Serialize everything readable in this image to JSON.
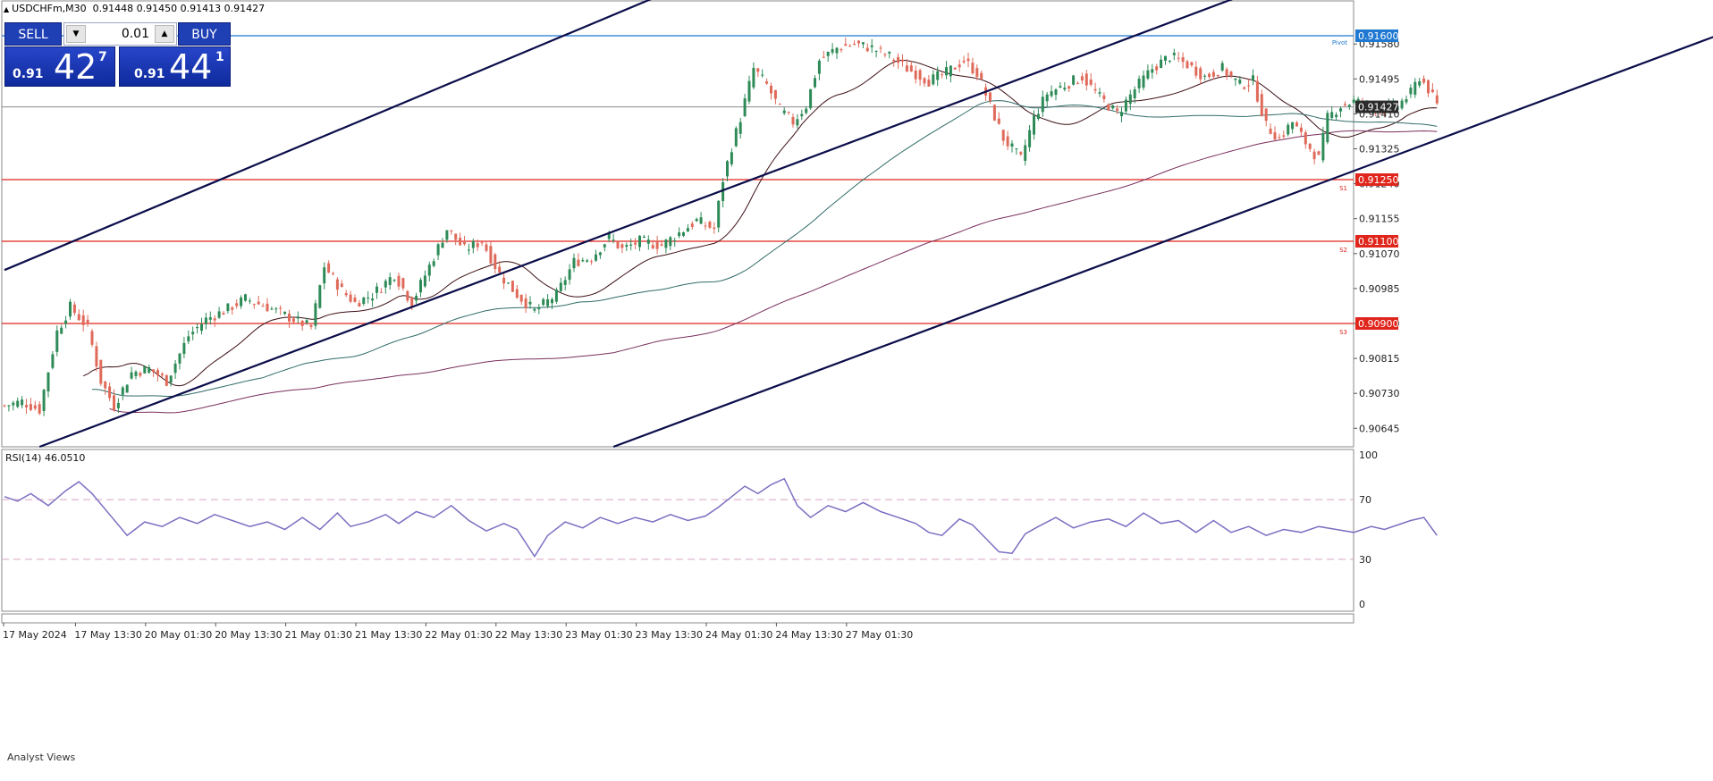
{
  "header": {
    "symbol": "USDCHFm,M30",
    "ohlc": "0.91448 0.91450 0.91413 0.91427"
  },
  "trade_panel": {
    "sell_label": "SELL",
    "buy_label": "BUY",
    "lot": "0.01",
    "bid": {
      "prefix": "0.91",
      "big": "42",
      "sup": "7"
    },
    "ask": {
      "prefix": "0.91",
      "big": "44",
      "sup": "1"
    }
  },
  "analyst_views_label": "Analyst Views",
  "colors": {
    "bull": "#2e8b57",
    "bear": "#e06a5a",
    "channel": "#0b0d4a",
    "level": "#e0261c",
    "pivot": "#1f78d1",
    "ma_fast": "#3d0f14",
    "ma_mid": "#2f6b68",
    "ma_slow": "#7a2f5e",
    "rsi": "#7b6fc2"
  },
  "chart_data": [
    {
      "type": "candlestick",
      "title": "",
      "ylim": [
        0.906,
        0.9165
      ],
      "yticks": [
        "0.91580",
        "0.91495",
        "0.91410",
        "0.91325",
        "0.91240",
        "0.91155",
        "0.91070",
        "0.90985",
        "0.90900",
        "0.90815",
        "0.90730",
        "0.90645"
      ],
      "xtick_labels": [
        "17 May 2024",
        "17 May 13:30",
        "20 May 01:30",
        "20 May 13:30",
        "21 May 01:30",
        "21 May 13:30",
        "22 May 01:30",
        "22 May 13:30",
        "23 May 01:30",
        "23 May 13:30",
        "24 May 01:30",
        "24 May 13:30",
        "27 May 01:30"
      ],
      "current_price": {
        "value": 0.91427,
        "label": "0.91427"
      },
      "levels": [
        {
          "name": "Pivot",
          "value": 0.916,
          "label": "0.91600"
        },
        {
          "name": "S1",
          "value": 0.9125,
          "label": "0.91250"
        },
        {
          "name": "S2",
          "value": 0.911,
          "label": "0.91100"
        },
        {
          "name": "S3",
          "value": 0.909,
          "label": "0.90900"
        }
      ],
      "channel_lines": [
        {
          "from": [
            0,
            0.9103
          ],
          "to": [
            150,
            0.917
          ]
        },
        {
          "from": [
            8,
            0.906
          ],
          "to": [
            283,
            0.917
          ]
        },
        {
          "from": [
            139,
            0.906
          ],
          "to": [
            416,
            0.917
          ]
        }
      ],
      "close_points": [
        [
          0,
          0.907
        ],
        [
          4,
          0.9071
        ],
        [
          8,
          0.9069
        ],
        [
          12,
          0.9088
        ],
        [
          15,
          0.9094
        ],
        [
          19,
          0.9089
        ],
        [
          22,
          0.9076
        ],
        [
          25,
          0.907
        ],
        [
          29,
          0.9078
        ],
        [
          33,
          0.9079
        ],
        [
          37,
          0.9076
        ],
        [
          42,
          0.9087
        ],
        [
          46,
          0.9091
        ],
        [
          50,
          0.9093
        ],
        [
          55,
          0.9096
        ],
        [
          60,
          0.9094
        ],
        [
          66,
          0.9091
        ],
        [
          70,
          0.9089
        ],
        [
          73,
          0.9104
        ],
        [
          77,
          0.9098
        ],
        [
          80,
          0.9095
        ],
        [
          84,
          0.9097
        ],
        [
          89,
          0.9102
        ],
        [
          93,
          0.9095
        ],
        [
          97,
          0.9104
        ],
        [
          101,
          0.9113
        ],
        [
          105,
          0.9108
        ],
        [
          109,
          0.911
        ],
        [
          113,
          0.9102
        ],
        [
          117,
          0.9097
        ],
        [
          121,
          0.9093
        ],
        [
          126,
          0.9097
        ],
        [
          130,
          0.9105
        ],
        [
          134,
          0.9106
        ],
        [
          138,
          0.9111
        ],
        [
          141,
          0.9108
        ],
        [
          145,
          0.911
        ],
        [
          150,
          0.9109
        ],
        [
          154,
          0.9112
        ],
        [
          158,
          0.9115
        ],
        [
          162,
          0.9113
        ],
        [
          164,
          0.9125
        ],
        [
          166,
          0.9133
        ],
        [
          168,
          0.914
        ],
        [
          171,
          0.9152
        ],
        [
          174,
          0.9148
        ],
        [
          177,
          0.9142
        ],
        [
          180,
          0.9139
        ],
        [
          183,
          0.9143
        ],
        [
          186,
          0.9154
        ],
        [
          190,
          0.9157
        ],
        [
          194,
          0.9158
        ],
        [
          198,
          0.9157
        ],
        [
          202,
          0.9155
        ],
        [
          206,
          0.9152
        ],
        [
          211,
          0.9149
        ],
        [
          215,
          0.9151
        ],
        [
          219,
          0.9154
        ],
        [
          222,
          0.9151
        ],
        [
          225,
          0.9143
        ],
        [
          228,
          0.9135
        ],
        [
          232,
          0.913
        ],
        [
          235,
          0.914
        ],
        [
          238,
          0.9146
        ],
        [
          242,
          0.9148
        ],
        [
          246,
          0.915
        ],
        [
          250,
          0.9145
        ],
        [
          254,
          0.9141
        ],
        [
          258,
          0.9147
        ],
        [
          262,
          0.9152
        ],
        [
          266,
          0.9155
        ],
        [
          270,
          0.9153
        ],
        [
          274,
          0.915
        ],
        [
          278,
          0.9152
        ],
        [
          282,
          0.9148
        ],
        [
          285,
          0.9149
        ],
        [
          288,
          0.9138
        ],
        [
          291,
          0.9135
        ],
        [
          294,
          0.9139
        ],
        [
          297,
          0.9134
        ],
        [
          300,
          0.913
        ],
        [
          302,
          0.914
        ],
        [
          305,
          0.9143
        ],
        [
          308,
          0.9144
        ],
        [
          312,
          0.9143
        ],
        [
          315,
          0.9142
        ],
        [
          318,
          0.9143
        ],
        [
          321,
          0.9146
        ],
        [
          323,
          0.915
        ],
        [
          325,
          0.9147
        ],
        [
          327,
          0.9143
        ]
      ]
    },
    {
      "type": "line",
      "title": "RSI(14) 46.0510",
      "ylim": [
        0,
        100
      ],
      "yticks": [
        "100",
        "70",
        "30",
        "0"
      ],
      "levels": [
        70,
        30
      ],
      "values": [
        [
          0,
          72
        ],
        [
          3,
          69
        ],
        [
          6,
          74
        ],
        [
          10,
          66
        ],
        [
          14,
          76
        ],
        [
          17,
          82
        ],
        [
          20,
          74
        ],
        [
          24,
          60
        ],
        [
          28,
          46
        ],
        [
          32,
          55
        ],
        [
          36,
          52
        ],
        [
          40,
          58
        ],
        [
          44,
          54
        ],
        [
          48,
          60
        ],
        [
          52,
          56
        ],
        [
          56,
          52
        ],
        [
          60,
          55
        ],
        [
          64,
          50
        ],
        [
          68,
          58
        ],
        [
          72,
          50
        ],
        [
          76,
          61
        ],
        [
          79,
          52
        ],
        [
          83,
          55
        ],
        [
          87,
          60
        ],
        [
          90,
          54
        ],
        [
          94,
          62
        ],
        [
          98,
          58
        ],
        [
          102,
          66
        ],
        [
          106,
          56
        ],
        [
          110,
          49
        ],
        [
          114,
          54
        ],
        [
          117,
          50
        ],
        [
          121,
          32
        ],
        [
          124,
          46
        ],
        [
          128,
          55
        ],
        [
          132,
          51
        ],
        [
          136,
          58
        ],
        [
          140,
          54
        ],
        [
          144,
          58
        ],
        [
          148,
          55
        ],
        [
          152,
          60
        ],
        [
          156,
          56
        ],
        [
          160,
          59
        ],
        [
          163,
          65
        ],
        [
          166,
          72
        ],
        [
          169,
          79
        ],
        [
          172,
          74
        ],
        [
          175,
          80
        ],
        [
          178,
          84
        ],
        [
          181,
          66
        ],
        [
          184,
          58
        ],
        [
          188,
          66
        ],
        [
          192,
          62
        ],
        [
          196,
          68
        ],
        [
          200,
          62
        ],
        [
          204,
          58
        ],
        [
          208,
          54
        ],
        [
          211,
          48
        ],
        [
          214,
          46
        ],
        [
          218,
          57
        ],
        [
          221,
          53
        ],
        [
          224,
          44
        ],
        [
          227,
          35
        ],
        [
          230,
          34
        ],
        [
          233,
          47
        ],
        [
          236,
          52
        ],
        [
          240,
          58
        ],
        [
          244,
          51
        ],
        [
          248,
          55
        ],
        [
          252,
          57
        ],
        [
          256,
          52
        ],
        [
          260,
          61
        ],
        [
          264,
          54
        ],
        [
          268,
          56
        ],
        [
          272,
          48
        ],
        [
          276,
          56
        ],
        [
          280,
          48
        ],
        [
          284,
          52
        ],
        [
          288,
          46
        ],
        [
          292,
          50
        ],
        [
          296,
          48
        ],
        [
          300,
          52
        ],
        [
          304,
          50
        ],
        [
          308,
          48
        ],
        [
          312,
          52
        ],
        [
          315,
          50
        ],
        [
          318,
          53
        ],
        [
          321,
          56
        ],
        [
          324,
          58
        ],
        [
          326,
          50
        ],
        [
          327,
          46
        ]
      ]
    }
  ]
}
